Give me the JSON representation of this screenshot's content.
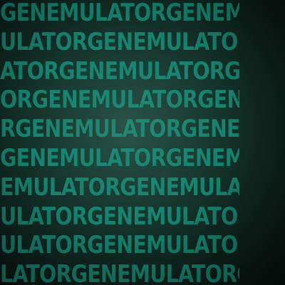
{
  "pattern": {
    "background_colors": [
      "#1f4a3f",
      "#133128",
      "#08110e"
    ],
    "text_color": "#16826f",
    "rows": [
      "GENEMULATORGENEMULA",
      "ULATORGENEMULATORGE",
      "ATORGENEMULATORGENE",
      "ORGENEMULATORGENEMU",
      "RGENEMULATORGENEMUL",
      "GENEMULATORGENEMULA",
      "EMULATORGENEMULATOR",
      "ULATORGENEMULATORGE",
      "ULATORGENEMULATORGE",
      "LATORGENEMULATORGEN"
    ]
  }
}
